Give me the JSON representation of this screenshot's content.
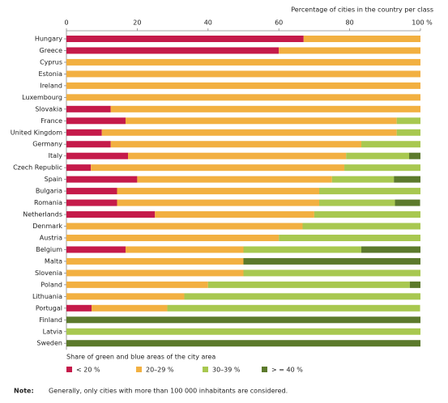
{
  "chart_data": {
    "type": "stacked-bar-horizontal",
    "title": "Percentage of cities in the country per class",
    "legend_title": "Share of green and blue areas of the city area",
    "note_label": "Note:",
    "note": "Generally, only cities with more than 100 000 inhabitants are considered.",
    "categories": [
      "Hungary",
      "Greece",
      "Cyprus",
      "Estonia",
      "Ireland",
      "Luxembourg",
      "Slovakia",
      "France",
      "United Kingdom",
      "Germany",
      "Italy",
      "Czech Republic",
      "Spain",
      "Bulgaria",
      "Romania",
      "Netherlands",
      "Denmark",
      "Austria",
      "Belgium",
      "Malta",
      "Slovenia",
      "Poland",
      "Lithuania",
      "Portugal",
      "Finland",
      "Latvia",
      "Sweden"
    ],
    "series": [
      {
        "name": "< 20 %",
        "color": "#c51a4a",
        "values": [
          67,
          60,
          0,
          0,
          0,
          0,
          12.5,
          16.7,
          10,
          12.5,
          17.4,
          6.9,
          20,
          14.3,
          14.3,
          25,
          0,
          0,
          16.7,
          0,
          0,
          0,
          0,
          7.1,
          0,
          0,
          0
        ]
      },
      {
        "name": "20–29 %",
        "color": "#f2b041",
        "values": [
          33,
          40,
          100,
          100,
          100,
          100,
          87.5,
          76.6,
          83.3,
          70.8,
          61.6,
          71.6,
          55,
          57.1,
          57.1,
          45,
          66.7,
          60,
          33.3,
          50,
          50,
          40,
          33.3,
          21.4,
          0,
          0,
          0
        ]
      },
      {
        "name": "30–39 %",
        "color": "#a8c850",
        "values": [
          0,
          0,
          0,
          0,
          0,
          0,
          0,
          6.7,
          6.7,
          16.7,
          17.8,
          21.5,
          17.5,
          28.6,
          21.4,
          30,
          33.3,
          40,
          33.3,
          0,
          50,
          57,
          66.7,
          71.4,
          0,
          100,
          0
        ]
      },
      {
        "name": "> = 40 %",
        "color": "#5c7a2c",
        "values": [
          0,
          0,
          0,
          0,
          0,
          0,
          0,
          0,
          0,
          0,
          3.2,
          0,
          7.5,
          0,
          7.1,
          0,
          0,
          0,
          16.7,
          50,
          0,
          3,
          0,
          0,
          100,
          0,
          100
        ]
      }
    ],
    "xlim": [
      0,
      100
    ],
    "xticks": [
      0,
      20,
      40,
      60,
      80,
      {
        "value": 100,
        "label": "100 %"
      }
    ]
  }
}
